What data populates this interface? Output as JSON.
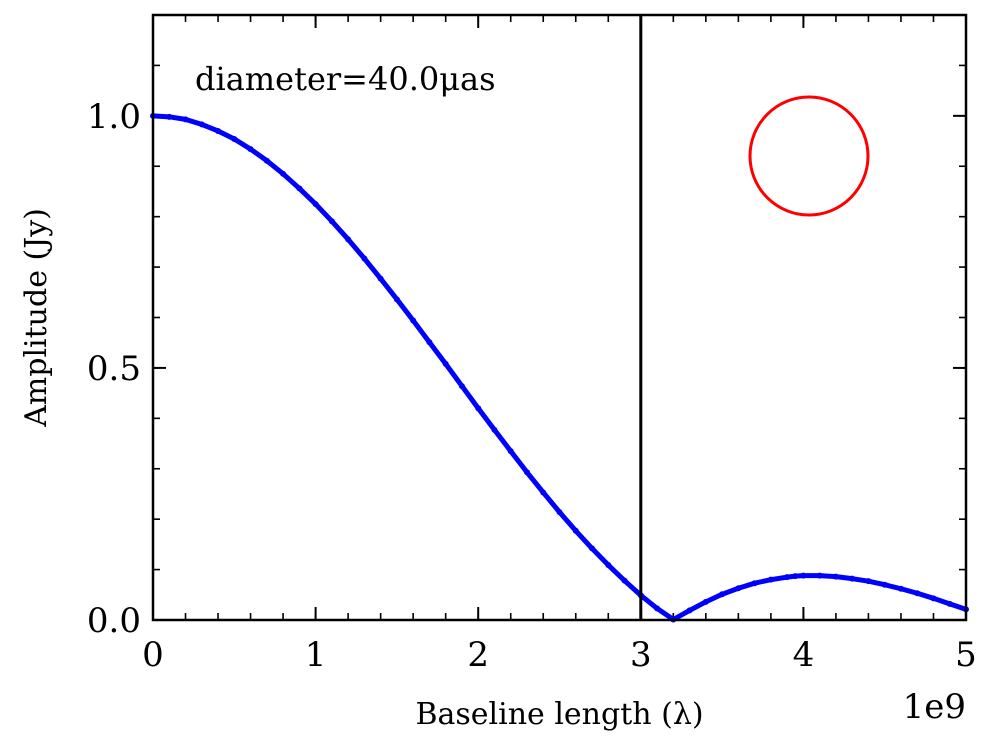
{
  "chart_data": {
    "type": "scatter",
    "title": "",
    "xlabel": "Baseline length (λ)",
    "ylabel": "Amplitude (Jy)",
    "x_offset_label": "1e9",
    "xlim": [
      0,
      5
    ],
    "ylim": [
      0,
      1.2
    ],
    "xticks": [
      {
        "value": 0,
        "label": "0"
      },
      {
        "value": 1,
        "label": "1"
      },
      {
        "value": 2,
        "label": "2"
      },
      {
        "value": 3,
        "label": "3"
      },
      {
        "value": 4,
        "label": "4"
      },
      {
        "value": 5,
        "label": "5"
      }
    ],
    "yticks": [
      {
        "value": 0.0,
        "label": "0.0"
      },
      {
        "value": 0.5,
        "label": "0.5"
      },
      {
        "value": 1.0,
        "label": "1.0"
      }
    ],
    "x_minor_step": 0.2,
    "y_minor_step": 0.1,
    "grid": false,
    "annotation": "diameter=40.0μas",
    "vline_x": 3.0,
    "series": [
      {
        "color": "#0000ff",
        "x": [
          0.0,
          0.1,
          0.2,
          0.3,
          0.4,
          0.5,
          0.6,
          0.7,
          0.8,
          0.9,
          1.0,
          1.1,
          1.2,
          1.3,
          1.4,
          1.5,
          1.6,
          1.7,
          1.8,
          1.9,
          2.0,
          2.1,
          2.2,
          2.3,
          2.4,
          2.5,
          2.6,
          2.7,
          2.8,
          2.9,
          3.0,
          3.1,
          3.2,
          3.3,
          3.4,
          3.5,
          3.6,
          3.7,
          3.8,
          3.9,
          3.95,
          4.0,
          4.1,
          4.2,
          4.3,
          4.4,
          4.5,
          4.6,
          4.7,
          4.8,
          4.9,
          5.0
        ],
        "y": [
          1.0,
          0.998,
          0.993,
          0.983,
          0.97,
          0.954,
          0.934,
          0.911,
          0.885,
          0.856,
          0.825,
          0.791,
          0.755,
          0.717,
          0.677,
          0.636,
          0.594,
          0.551,
          0.508,
          0.464,
          0.42,
          0.377,
          0.335,
          0.293,
          0.253,
          0.214,
          0.177,
          0.142,
          0.109,
          0.078,
          0.049,
          0.023,
          0.001,
          0.019,
          0.036,
          0.051,
          0.063,
          0.073,
          0.08,
          0.085,
          0.087,
          0.088,
          0.088,
          0.086,
          0.082,
          0.077,
          0.07,
          0.062,
          0.053,
          0.043,
          0.032,
          0.021
        ]
      }
    ],
    "inset_shape": "circle",
    "inset_color": "#ff0000"
  }
}
